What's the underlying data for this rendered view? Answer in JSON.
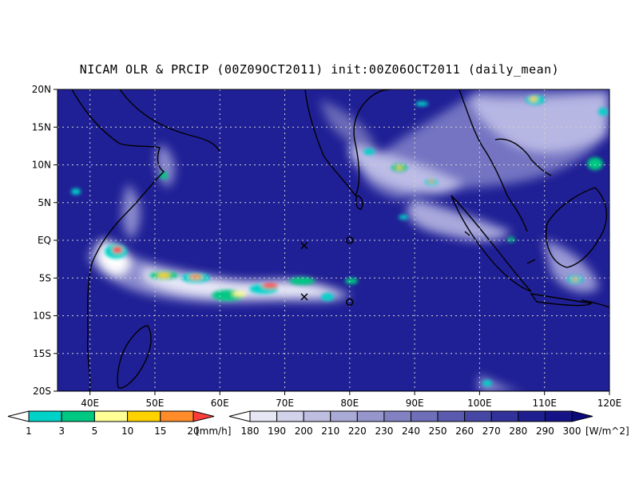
{
  "title": "NICAM OLR & PRCIP (00Z09OCT2011) init:00Z06OCT2011 (daily_mean)",
  "map": {
    "lon_range": [
      35,
      120
    ],
    "lat_range": [
      -20,
      20
    ],
    "lon_ticks": [
      "40E",
      "50E",
      "60E",
      "70E",
      "80E",
      "90E",
      "100E",
      "110E",
      "120E"
    ],
    "lat_ticks": [
      "20N",
      "15N",
      "10N",
      "5N",
      "EQ",
      "5S",
      "10S",
      "15S",
      "20S"
    ],
    "grid": true,
    "markers": [
      {
        "type": "cross",
        "lon": 73,
        "lat": -0.7
      },
      {
        "type": "circle",
        "lon": 80,
        "lat": 0
      },
      {
        "type": "cross",
        "lon": 73,
        "lat": -7.5
      },
      {
        "type": "circle",
        "lon": 80,
        "lat": -8.2
      }
    ]
  },
  "precip_legend": {
    "levels": [
      "1",
      "3",
      "5",
      "10",
      "15",
      "20"
    ],
    "unit": "[mm/h]",
    "colors": [
      "#ffffff",
      "#00d2c8",
      "#00c882",
      "#ffff96",
      "#ffd200",
      "#ff8c28",
      "#ff3c3c"
    ]
  },
  "olr_legend": {
    "levels": [
      "180",
      "190",
      "200",
      "210",
      "220",
      "230",
      "240",
      "250",
      "260",
      "270",
      "280",
      "290",
      "300"
    ],
    "unit": "[W/m^2]",
    "colors": [
      "#ffffff",
      "#e6e6f5",
      "#d2d2eb",
      "#bebee1",
      "#aaaad7",
      "#9696cd",
      "#8282c3",
      "#6e6eb9",
      "#5a5aaf",
      "#4646a5",
      "#32329b",
      "#1e1e91",
      "#141487",
      "#0a0a7d"
    ]
  }
}
